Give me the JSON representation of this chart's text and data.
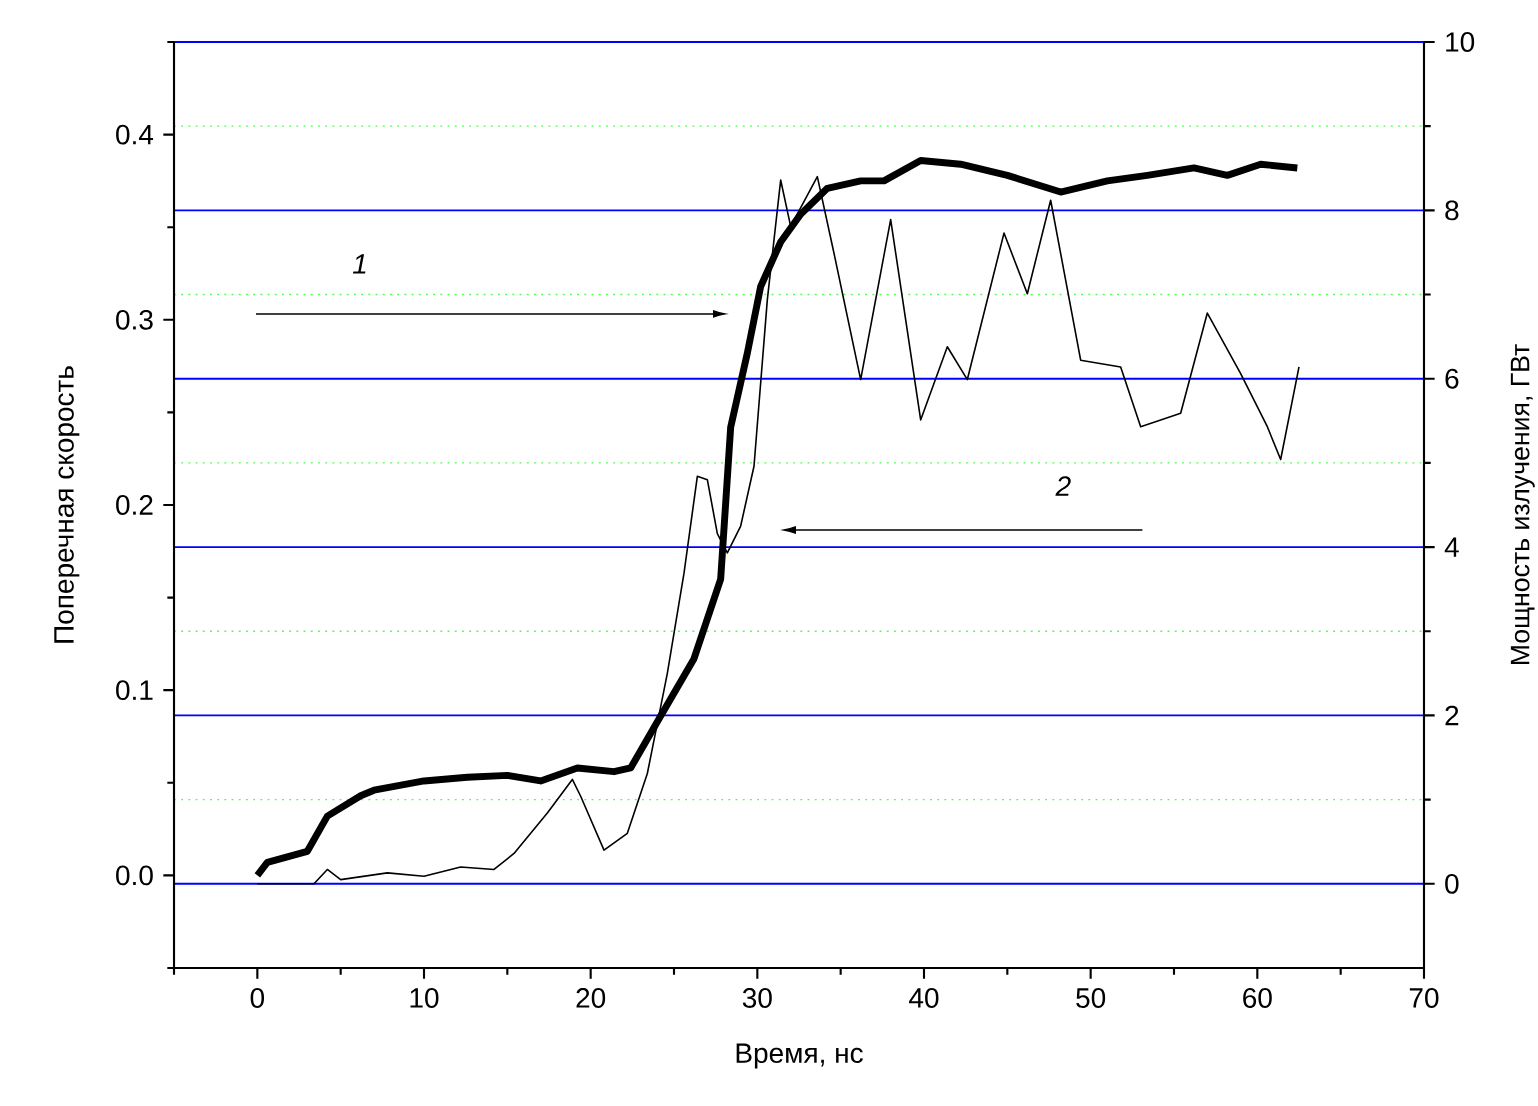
{
  "chart_data": {
    "type": "line",
    "xlabel": "Время, нс",
    "ylabel": "Поперечная скорость",
    "y2label": "Мощность излучения, ГВт",
    "xlim": [
      -5,
      70
    ],
    "xticks": [
      {
        "value": -5,
        "label": null
      },
      0,
      {
        "value": 5,
        "label": null
      },
      10,
      {
        "value": 15,
        "label": null
      },
      20,
      {
        "value": 25,
        "label": null
      },
      30,
      {
        "value": 35,
        "label": null
      },
      40,
      {
        "value": 45,
        "label": null
      },
      50,
      {
        "value": 55,
        "label": null
      },
      60,
      {
        "value": 65,
        "label": null
      },
      70
    ],
    "ylim": [
      -0.05,
      0.45
    ],
    "yticks": [
      {
        "value": -0.05,
        "label": null
      },
      {
        "value": 0,
        "label": "0.0"
      },
      {
        "value": 0.05,
        "label": null
      },
      0.1,
      {
        "value": 0.15,
        "label": null
      },
      0.2,
      {
        "value": 0.25,
        "label": null
      },
      0.3,
      {
        "value": 0.35,
        "label": null
      },
      0.4,
      {
        "value": 0.45,
        "label": null
      }
    ],
    "y2lim": [
      -1,
      10
    ],
    "y2ticks": [
      0,
      {
        "value": 1,
        "label": null
      },
      2,
      {
        "value": 3,
        "label": null
      },
      4,
      {
        "value": 5,
        "label": null
      },
      6,
      {
        "value": 7,
        "label": null
      },
      8,
      {
        "value": 9,
        "label": null
      },
      10
    ],
    "grid": true,
    "series": [
      {
        "color": "#000000",
        "x": [
          0,
          0.6,
          3.0,
          4.2,
          6.2,
          7.0,
          10,
          12.6,
          15,
          17,
          19.2,
          21.4,
          22.4,
          24,
          26.2,
          27.8,
          28.4,
          29.4,
          30.2,
          31.4,
          32.6,
          34.2,
          36.2,
          37.6,
          39.8,
          42.2,
          45.0,
          48.2,
          51.0,
          53.4,
          56.2,
          58.2,
          60.2,
          62.4
        ],
        "values": [
          0.0,
          0.007,
          0.013,
          0.032,
          0.043,
          0.046,
          0.051,
          0.053,
          0.054,
          0.051,
          0.058,
          0.056,
          0.058,
          0.083,
          0.117,
          0.16,
          0.242,
          0.282,
          0.318,
          0.342,
          0.357,
          0.371,
          0.375,
          0.375,
          0.386,
          0.384,
          0.378,
          0.369,
          0.375,
          0.378,
          0.382,
          0.378,
          0.384,
          0.382
        ]
      },
      {
        "color": "#000000",
        "axis": "y2",
        "x": [
          0,
          3.4,
          4.2,
          5.0,
          7.8,
          10,
          12.2,
          14.2,
          15.4,
          17.4,
          18.9,
          19.4,
          20.8,
          22.2,
          23.4,
          24.6,
          25.6,
          26.4,
          27.0,
          27.6,
          28.2,
          29.0,
          29.8,
          30.6,
          31.4,
          32.0,
          33.6,
          34.6,
          36.2,
          38.0,
          39.8,
          41.4,
          42.6,
          44.8,
          46.2,
          47.6,
          49.4,
          51.8,
          53.0,
          55.4,
          57.0,
          59.0,
          60.6,
          61.4,
          62.5
        ],
        "values": [
          0.0,
          0.0,
          0.17,
          0.05,
          0.13,
          0.09,
          0.2,
          0.17,
          0.36,
          0.84,
          1.24,
          1.04,
          0.4,
          0.6,
          1.31,
          2.5,
          3.69,
          4.84,
          4.8,
          4.16,
          3.93,
          4.25,
          4.96,
          6.94,
          8.36,
          7.81,
          8.4,
          7.49,
          5.99,
          7.89,
          5.51,
          6.38,
          5.99,
          7.73,
          7.01,
          8.12,
          6.22,
          6.14,
          5.43,
          5.59,
          6.78,
          6.06,
          5.43,
          5.04,
          6.14
        ]
      }
    ],
    "annotations": [
      "1",
      "2"
    ]
  }
}
